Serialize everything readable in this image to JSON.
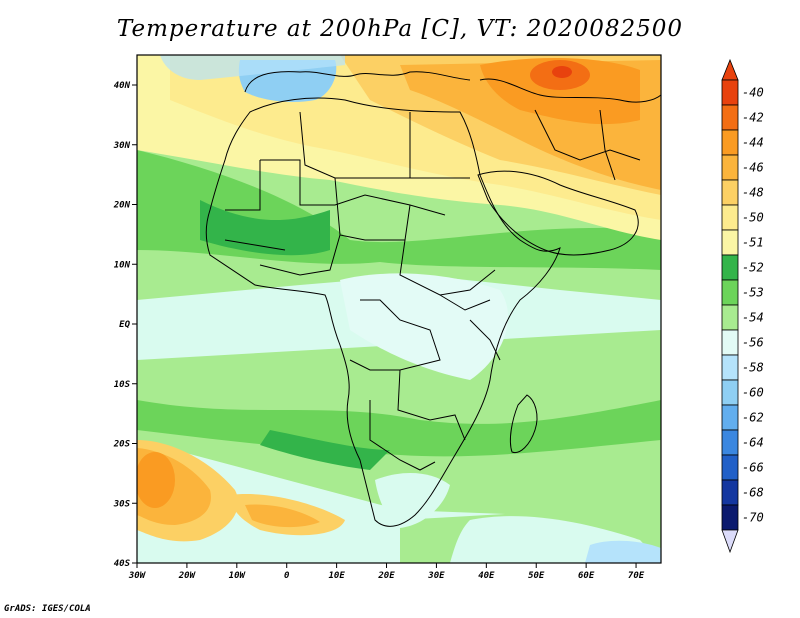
{
  "title": "Temperature at 200hPa [C], VT: 2020082500",
  "credit": "GrADS: IGES/COLA",
  "map": {
    "lon_labels": [
      "30W",
      "20W",
      "10W",
      "0",
      "10E",
      "20E",
      "30E",
      "40E",
      "50E",
      "60E",
      "70E"
    ],
    "lat_labels": [
      "40N",
      "30N",
      "20N",
      "10N",
      "EQ",
      "10S",
      "20S",
      "30S",
      "40S"
    ],
    "region": "Africa and surrounding seas",
    "fields": [
      {
        "name": "warm-north",
        "level": "-44 to -50"
      },
      {
        "name": "hotspot-iran",
        "level": "-40 to -42"
      },
      {
        "name": "iberia-cold",
        "level": "-56 to -58"
      },
      {
        "name": "equatorial-band",
        "level": "-54 to -56"
      },
      {
        "name": "sw-atlantic-warm",
        "level": "-46 to -48"
      }
    ]
  },
  "colorbar": {
    "levels": [
      {
        "label": "-40",
        "color": "#e8420e"
      },
      {
        "label": "-42",
        "color": "#f36e14"
      },
      {
        "label": "-44",
        "color": "#fa9b22"
      },
      {
        "label": "-46",
        "color": "#fbb43c"
      },
      {
        "label": "-48",
        "color": "#fcd064"
      },
      {
        "label": "-50",
        "color": "#fdeb8e"
      },
      {
        "label": "-51",
        "color": "#fbf6a5"
      },
      {
        "label": "-52",
        "color": "#33b44a"
      },
      {
        "label": "-53",
        "color": "#6cd45a"
      },
      {
        "label": "-54",
        "color": "#a8eb90"
      },
      {
        "label": "-56",
        "color": "#e3fbf6"
      },
      {
        "label": "-58",
        "color": "#b5e3fb"
      },
      {
        "label": "-60",
        "color": "#8fcff3"
      },
      {
        "label": "-62",
        "color": "#62aeee"
      },
      {
        "label": "-64",
        "color": "#3b87e0"
      },
      {
        "label": "-66",
        "color": "#2160c8"
      },
      {
        "label": "-68",
        "color": "#1437a0"
      },
      {
        "label": "-70",
        "color": "#0b1a6e"
      }
    ],
    "low_end_color": "#dcdcfa"
  }
}
